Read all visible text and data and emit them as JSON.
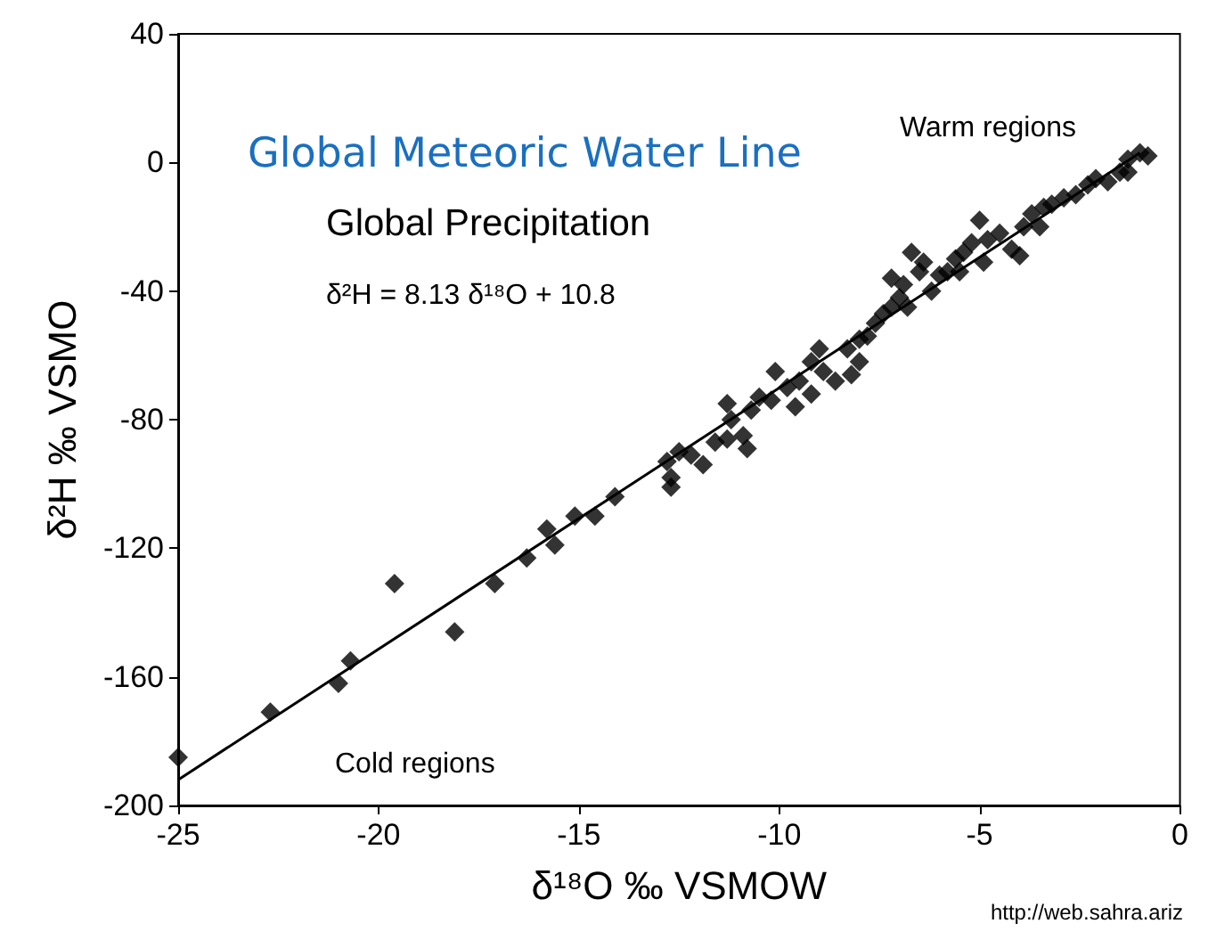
{
  "chart_data": {
    "type": "scatter",
    "title": "Global Meteoric Water Line",
    "xlabel": "δ¹⁸O ‰ VSMOW",
    "ylabel": "δ²H ‰ VSMO",
    "annotations": [
      "Global Precipitation",
      "δ²H = 8.13 δ¹⁸O + 10.8",
      "Warm regions",
      "Cold regions",
      "http://web.sahra.ariz"
    ],
    "xlim": [
      -25,
      0
    ],
    "xticks": [
      -25,
      -20,
      -15,
      -10,
      -5,
      0
    ],
    "ylim": [
      -200,
      40
    ],
    "yticks": [
      -200,
      -160,
      -120,
      -80,
      -40,
      0,
      40
    ],
    "grid": false,
    "marker": "diamond",
    "series": [
      {
        "color": "#000000",
        "x": [
          -25,
          -22.7,
          -21,
          -20.7,
          -19.6,
          -18.1,
          -17.1,
          -16.3,
          -15.8,
          -15.6,
          -15.1,
          -14.6,
          -14.1,
          -12.8,
          -12.7,
          -12.7,
          -12.5,
          -12.2,
          -11.9,
          -11.6,
          -11.3,
          -11.2,
          -11.3,
          -10.9,
          -10.8,
          -10.7,
          -10.5,
          -10.2,
          -10.1,
          -9.8,
          -9.5,
          -9.2,
          -9.2,
          -9,
          -8.9,
          -8.6,
          -8.2,
          -8.3,
          -8,
          -7.8,
          -7.6,
          -7.4,
          -7.2,
          -7,
          -7.2,
          -6.9,
          -6.7,
          -6.5,
          -6.4,
          -6.2,
          -6,
          -5.8,
          -5.6,
          -5.4,
          -5.2,
          -5,
          -4.9,
          -4.8,
          -4.5,
          -4.2,
          -4,
          -3.9,
          -3.7,
          -3.4,
          -3.2,
          -2.9,
          -2.6,
          -2.3,
          -2.1,
          -1.8,
          -1.5,
          -1.3,
          -1.3,
          -1,
          -0.8,
          -3.5,
          -6.8,
          -8,
          -9.6,
          -5.5
        ],
        "values": [
          -185,
          -171,
          -162,
          -155,
          -131,
          -146,
          -131,
          -123,
          -114,
          -119,
          -110,
          -110,
          -104,
          -93,
          -98,
          -101,
          -90,
          -91,
          -94,
          -87,
          -86,
          -80,
          -75,
          -85,
          -89,
          -77,
          -73,
          -74,
          -65,
          -70,
          -68,
          -72,
          -62,
          -58,
          -65,
          -68,
          -66,
          -58,
          -55,
          -54,
          -50,
          -47,
          -45,
          -42,
          -36,
          -38,
          -28,
          -34,
          -31,
          -40,
          -35,
          -34,
          -30,
          -28,
          -25,
          -18,
          -31,
          -24,
          -22,
          -27,
          -29,
          -20,
          -16,
          -14,
          -13,
          -11,
          -10,
          -7,
          -5,
          -6,
          -3,
          -3,
          1,
          3,
          2,
          -20,
          -45,
          -62,
          -76,
          -34
        ]
      },
      {
        "type": "line",
        "color": "#000000",
        "marker": "none",
        "line_style": "solid",
        "x": [
          -25,
          -1
        ],
        "values": [
          -192,
          3
        ]
      }
    ]
  }
}
